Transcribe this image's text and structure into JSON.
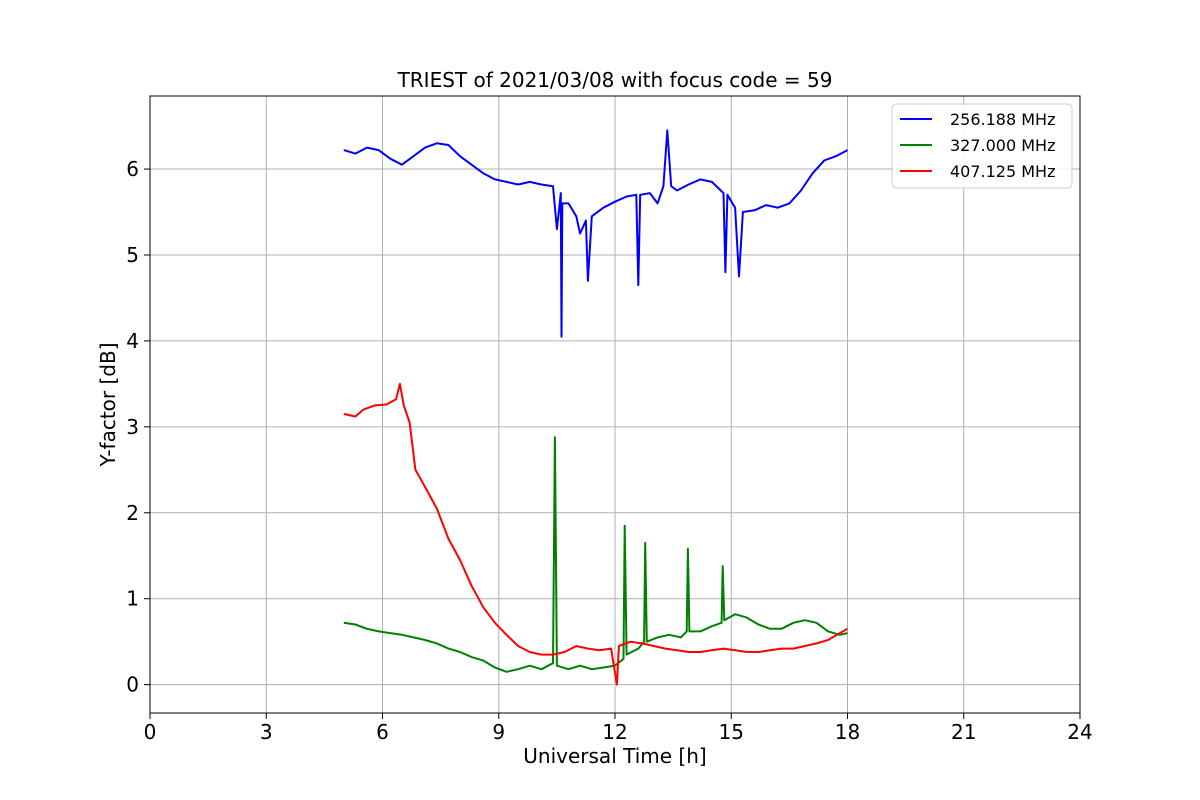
{
  "chart_data": {
    "type": "line",
    "title": "TRIEST of 2021/03/08 with focus code = 59",
    "xlabel": "Universal Time [h]",
    "ylabel": "Y-factor [dB]",
    "xlim": [
      0,
      24
    ],
    "ylim": [
      -0.33,
      6.85
    ],
    "xticks": [
      0,
      3,
      6,
      9,
      12,
      15,
      18,
      21,
      24
    ],
    "yticks": [
      0,
      1,
      2,
      3,
      4,
      5,
      6
    ],
    "grid": true,
    "legend_position": "top-right",
    "series": [
      {
        "name": "256.188 MHz",
        "color": "#0000ff",
        "points": [
          [
            5.0,
            6.22
          ],
          [
            5.3,
            6.18
          ],
          [
            5.6,
            6.25
          ],
          [
            5.9,
            6.22
          ],
          [
            6.2,
            6.12
          ],
          [
            6.5,
            6.05
          ],
          [
            6.8,
            6.15
          ],
          [
            7.1,
            6.25
          ],
          [
            7.4,
            6.3
          ],
          [
            7.7,
            6.28
          ],
          [
            8.0,
            6.15
          ],
          [
            8.3,
            6.05
          ],
          [
            8.6,
            5.95
          ],
          [
            8.9,
            5.88
          ],
          [
            9.2,
            5.85
          ],
          [
            9.5,
            5.82
          ],
          [
            9.8,
            5.85
          ],
          [
            10.1,
            5.82
          ],
          [
            10.4,
            5.8
          ],
          [
            10.5,
            5.3
          ],
          [
            10.6,
            5.72
          ],
          [
            10.62,
            4.05
          ],
          [
            10.64,
            5.6
          ],
          [
            10.8,
            5.6
          ],
          [
            11.0,
            5.45
          ],
          [
            11.1,
            5.25
          ],
          [
            11.25,
            5.4
          ],
          [
            11.3,
            4.7
          ],
          [
            11.4,
            5.45
          ],
          [
            11.7,
            5.55
          ],
          [
            12.0,
            5.62
          ],
          [
            12.3,
            5.68
          ],
          [
            12.55,
            5.7
          ],
          [
            12.6,
            4.65
          ],
          [
            12.65,
            5.7
          ],
          [
            12.9,
            5.72
          ],
          [
            13.1,
            5.6
          ],
          [
            13.25,
            5.8
          ],
          [
            13.35,
            6.45
          ],
          [
            13.45,
            5.8
          ],
          [
            13.6,
            5.75
          ],
          [
            13.9,
            5.82
          ],
          [
            14.2,
            5.88
          ],
          [
            14.5,
            5.85
          ],
          [
            14.8,
            5.72
          ],
          [
            14.85,
            4.8
          ],
          [
            14.9,
            5.7
          ],
          [
            15.1,
            5.55
          ],
          [
            15.2,
            4.75
          ],
          [
            15.3,
            5.5
          ],
          [
            15.6,
            5.52
          ],
          [
            15.9,
            5.58
          ],
          [
            16.2,
            5.55
          ],
          [
            16.5,
            5.6
          ],
          [
            16.8,
            5.75
          ],
          [
            17.1,
            5.95
          ],
          [
            17.4,
            6.1
          ],
          [
            17.7,
            6.15
          ],
          [
            18.0,
            6.22
          ]
        ]
      },
      {
        "name": "327.000 MHz",
        "color": "#008000",
        "points": [
          [
            5.0,
            0.72
          ],
          [
            5.3,
            0.7
          ],
          [
            5.6,
            0.65
          ],
          [
            5.9,
            0.62
          ],
          [
            6.2,
            0.6
          ],
          [
            6.5,
            0.58
          ],
          [
            6.8,
            0.55
          ],
          [
            7.1,
            0.52
          ],
          [
            7.4,
            0.48
          ],
          [
            7.7,
            0.42
          ],
          [
            8.0,
            0.38
          ],
          [
            8.3,
            0.32
          ],
          [
            8.6,
            0.28
          ],
          [
            8.9,
            0.2
          ],
          [
            9.2,
            0.15
          ],
          [
            9.5,
            0.18
          ],
          [
            9.8,
            0.22
          ],
          [
            10.1,
            0.18
          ],
          [
            10.4,
            0.25
          ],
          [
            10.45,
            2.88
          ],
          [
            10.5,
            0.22
          ],
          [
            10.8,
            0.18
          ],
          [
            11.1,
            0.22
          ],
          [
            11.4,
            0.18
          ],
          [
            11.7,
            0.2
          ],
          [
            12.0,
            0.22
          ],
          [
            12.22,
            0.3
          ],
          [
            12.25,
            1.85
          ],
          [
            12.3,
            0.35
          ],
          [
            12.6,
            0.42
          ],
          [
            12.75,
            0.5
          ],
          [
            12.78,
            1.65
          ],
          [
            12.82,
            0.5
          ],
          [
            13.1,
            0.55
          ],
          [
            13.4,
            0.58
          ],
          [
            13.7,
            0.55
          ],
          [
            13.85,
            0.62
          ],
          [
            13.88,
            1.58
          ],
          [
            13.92,
            0.62
          ],
          [
            14.2,
            0.62
          ],
          [
            14.5,
            0.68
          ],
          [
            14.75,
            0.72
          ],
          [
            14.78,
            1.38
          ],
          [
            14.82,
            0.75
          ],
          [
            15.1,
            0.82
          ],
          [
            15.4,
            0.78
          ],
          [
            15.7,
            0.7
          ],
          [
            16.0,
            0.65
          ],
          [
            16.3,
            0.65
          ],
          [
            16.6,
            0.72
          ],
          [
            16.9,
            0.75
          ],
          [
            17.2,
            0.72
          ],
          [
            17.5,
            0.62
          ],
          [
            17.8,
            0.58
          ],
          [
            18.0,
            0.6
          ]
        ]
      },
      {
        "name": "407.125 MHz",
        "color": "#ff0000",
        "points": [
          [
            5.0,
            3.15
          ],
          [
            5.3,
            3.12
          ],
          [
            5.5,
            3.2
          ],
          [
            5.8,
            3.25
          ],
          [
            6.1,
            3.26
          ],
          [
            6.35,
            3.32
          ],
          [
            6.45,
            3.5
          ],
          [
            6.55,
            3.25
          ],
          [
            6.7,
            3.05
          ],
          [
            6.85,
            2.5
          ],
          [
            7.1,
            2.3
          ],
          [
            7.4,
            2.05
          ],
          [
            7.7,
            1.7
          ],
          [
            8.0,
            1.45
          ],
          [
            8.3,
            1.15
          ],
          [
            8.6,
            0.9
          ],
          [
            8.9,
            0.72
          ],
          [
            9.2,
            0.58
          ],
          [
            9.5,
            0.45
          ],
          [
            9.8,
            0.38
          ],
          [
            10.1,
            0.35
          ],
          [
            10.4,
            0.35
          ],
          [
            10.7,
            0.38
          ],
          [
            11.0,
            0.45
          ],
          [
            11.3,
            0.42
          ],
          [
            11.6,
            0.4
          ],
          [
            11.9,
            0.42
          ],
          [
            12.05,
            0.0
          ],
          [
            12.1,
            0.45
          ],
          [
            12.4,
            0.5
          ],
          [
            12.7,
            0.48
          ],
          [
            13.0,
            0.45
          ],
          [
            13.3,
            0.42
          ],
          [
            13.6,
            0.4
          ],
          [
            13.9,
            0.38
          ],
          [
            14.2,
            0.38
          ],
          [
            14.5,
            0.4
          ],
          [
            14.8,
            0.42
          ],
          [
            15.1,
            0.4
          ],
          [
            15.4,
            0.38
          ],
          [
            15.7,
            0.38
          ],
          [
            16.0,
            0.4
          ],
          [
            16.3,
            0.42
          ],
          [
            16.6,
            0.42
          ],
          [
            16.9,
            0.45
          ],
          [
            17.2,
            0.48
          ],
          [
            17.5,
            0.52
          ],
          [
            17.8,
            0.6
          ],
          [
            18.0,
            0.65
          ]
        ]
      }
    ]
  }
}
